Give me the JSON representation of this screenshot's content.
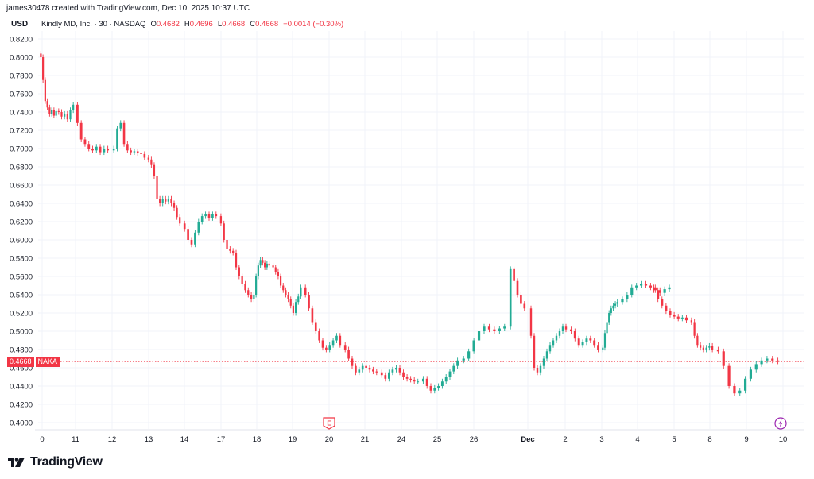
{
  "header": {
    "created_line": "james30478 created with TradingView.com, Dec 10, 2025 10:37 UTC",
    "currency": "USD",
    "symbol_line": "Kindly MD, Inc. · 30 · NASDAQ",
    "o_label": "O",
    "o_value": "0.4682",
    "h_label": "H",
    "h_value": "0.4696",
    "l_label": "L",
    "l_value": "0.4668",
    "c_label": "C",
    "c_value": "0.4668",
    "change": "−0.0014 (−0.30%)"
  },
  "price_tag": {
    "value": "0.4668",
    "symbol": "NAKA"
  },
  "brand": {
    "wordmark": "TradingView"
  },
  "colors": {
    "up": "#22ab94",
    "down": "#f23645",
    "grid": "#f0f3fa",
    "text": "#131722"
  },
  "markers": {
    "earnings_label": "E",
    "earnings_icon": "earnings-flag-icon",
    "dividend_icon": "lightning-icon"
  },
  "chart_data": {
    "type": "candlestick",
    "title": "Kindly MD, Inc. · 30 · NASDAQ",
    "y_ticks": [
      "0.8200",
      "0.8000",
      "0.7800",
      "0.7600",
      "0.7400",
      "0.7200",
      "0.7000",
      "0.6800",
      "0.6600",
      "0.6400",
      "0.6200",
      "0.6000",
      "0.5800",
      "0.5600",
      "0.5400",
      "0.5200",
      "0.5000",
      "0.4800",
      "0.4600",
      "0.4400",
      "0.4200",
      "0.4000"
    ],
    "ylim": [
      0.4,
      0.82
    ],
    "x_ticks": [
      "0",
      "11",
      "12",
      "13",
      "14",
      "17",
      "18",
      "19",
      "20",
      "21",
      "24",
      "25",
      "26",
      "Dec",
      "2",
      "3",
      "4",
      "5",
      "8",
      "9",
      "10"
    ],
    "last_close": 0.4668,
    "grid": true,
    "series": [
      {
        "day": "0",
        "points": [
          0.8,
          0.775,
          0.752,
          0.745,
          0.738,
          0.742,
          0.736,
          0.741
        ]
      },
      {
        "day": "0b",
        "points": [
          0.74,
          0.735,
          0.738,
          0.732,
          0.742,
          0.748
        ]
      },
      {
        "day": "11",
        "points": [
          0.728,
          0.71,
          0.705,
          0.7,
          0.698,
          0.702,
          0.696,
          0.7,
          0.698
        ]
      },
      {
        "day": "12",
        "points": [
          0.7,
          0.722,
          0.728,
          0.705,
          0.698,
          0.696,
          0.697,
          0.695,
          0.694,
          0.69
        ]
      },
      {
        "day": "13",
        "points": [
          0.688,
          0.682,
          0.67,
          0.645,
          0.64,
          0.645,
          0.642,
          0.645,
          0.64,
          0.635,
          0.625,
          0.618
        ]
      },
      {
        "day": "14",
        "points": [
          0.612,
          0.6,
          0.595,
          0.608,
          0.62,
          0.626,
          0.628,
          0.624,
          0.628,
          0.626
        ]
      },
      {
        "day": "17",
        "points": [
          0.618,
          0.6,
          0.59,
          0.588,
          0.586,
          0.57,
          0.56,
          0.552,
          0.545,
          0.54,
          0.535
        ]
      },
      {
        "day": "18",
        "points": [
          0.54,
          0.56,
          0.572,
          0.578,
          0.575,
          0.57,
          0.574,
          0.572
        ]
      },
      {
        "day": "19",
        "points": [
          0.57,
          0.565,
          0.56,
          0.55,
          0.545,
          0.54,
          0.535,
          0.528,
          0.52,
          0.532,
          0.538,
          0.548
        ]
      },
      {
        "day": "20",
        "points": [
          0.54,
          0.525,
          0.51,
          0.5,
          0.49,
          0.482,
          0.48,
          0.485,
          0.49,
          0.495,
          0.485
        ]
      },
      {
        "day": "21",
        "points": [
          0.48,
          0.47,
          0.462,
          0.455,
          0.458,
          0.462,
          0.46,
          0.458,
          0.456,
          0.455
        ]
      },
      {
        "day": "24",
        "points": [
          0.452,
          0.448,
          0.455,
          0.458,
          0.46,
          0.455,
          0.45,
          0.448,
          0.447,
          0.445,
          0.445
        ]
      },
      {
        "day": "25",
        "points": [
          0.448,
          0.44,
          0.435,
          0.438,
          0.44,
          0.445,
          0.45,
          0.456,
          0.462,
          0.468
        ]
      },
      {
        "day": "26",
        "points": [
          0.47,
          0.478,
          0.49,
          0.5,
          0.505,
          0.502,
          0.5,
          0.503,
          0.505
        ]
      },
      {
        "day": "26b",
        "points": [
          0.568,
          0.555,
          0.54,
          0.53,
          0.525
        ]
      },
      {
        "day": "Dec",
        "points": [
          0.495,
          0.46,
          0.455,
          0.462,
          0.47,
          0.478,
          0.485,
          0.49,
          0.495,
          0.5,
          0.505,
          0.502
        ]
      },
      {
        "day": "2",
        "points": [
          0.5,
          0.492,
          0.485,
          0.488,
          0.492,
          0.49,
          0.485,
          0.48
        ]
      },
      {
        "day": "3",
        "points": [
          0.482,
          0.498,
          0.51,
          0.52,
          0.525,
          0.528,
          0.53,
          0.532
        ]
      },
      {
        "day": "4",
        "points": [
          0.535,
          0.54,
          0.548,
          0.55,
          0.552,
          0.55,
          0.548,
          0.545,
          0.542,
          0.546,
          0.548
        ]
      },
      {
        "day": "5",
        "points": [
          0.545,
          0.535,
          0.528,
          0.522,
          0.518,
          0.516,
          0.514,
          0.515,
          0.512
        ]
      },
      {
        "day": "8",
        "points": [
          0.51,
          0.495,
          0.485,
          0.482,
          0.48,
          0.482,
          0.484,
          0.48
        ]
      },
      {
        "day": "9",
        "points": [
          0.478,
          0.462,
          0.44,
          0.432,
          0.435,
          0.448,
          0.458,
          0.464,
          0.468,
          0.47,
          0.468,
          0.467
        ]
      }
    ]
  }
}
